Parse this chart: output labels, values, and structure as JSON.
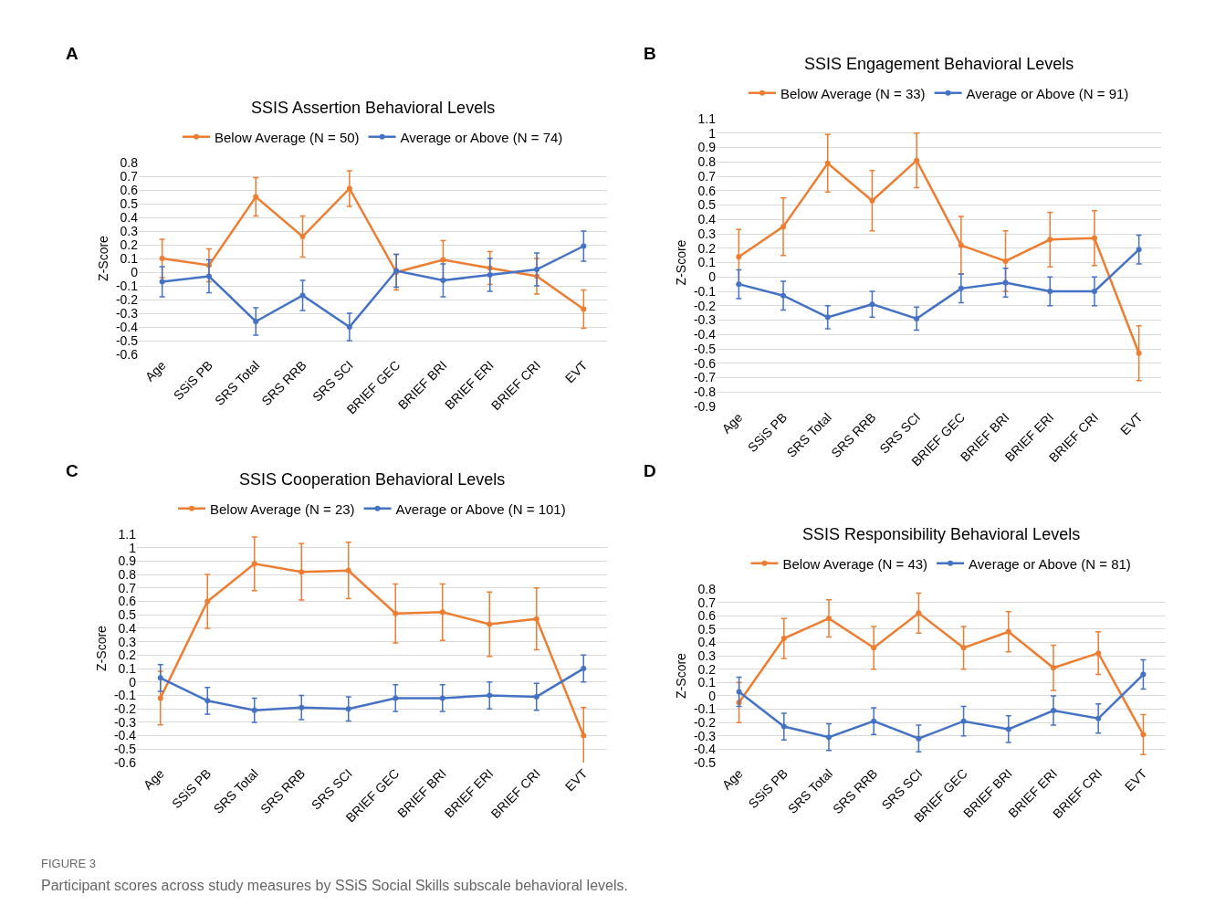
{
  "chart_data": [
    {
      "type": "line",
      "title": "SSIS Assertion Behavioral Levels",
      "ylabel": "Z-Score",
      "annotations": [
        "A"
      ],
      "categories": [
        "Age",
        "SSiS PB",
        "SRS Total",
        "SRS RRB",
        "SRS SCI",
        "BRIEF GEC",
        "BRIEF BRI",
        "BRIEF ERI",
        "BRIEF CRI",
        "EVT"
      ],
      "series": [
        {
          "name": "Below Average (N = 50)",
          "color": "#ed7d31",
          "values": [
            0.1,
            0.05,
            0.55,
            0.26,
            0.61,
            0.0,
            0.09,
            0.03,
            -0.03,
            -0.27
          ],
          "errors": [
            0.14,
            0.12,
            0.14,
            0.15,
            0.13,
            0.13,
            0.14,
            0.12,
            0.13,
            0.14
          ]
        },
        {
          "name": "Average or Above (N = 74)",
          "color": "#4472c4",
          "values": [
            -0.07,
            -0.03,
            -0.36,
            -0.17,
            -0.4,
            0.01,
            -0.06,
            -0.02,
            0.02,
            0.19
          ],
          "errors": [
            0.11,
            0.12,
            0.1,
            0.11,
            0.1,
            0.12,
            0.12,
            0.12,
            0.12,
            0.11
          ]
        }
      ],
      "ylim": [
        -0.6,
        0.8
      ],
      "yticks": [
        -0.6,
        -0.5,
        -0.4,
        -0.3,
        -0.2,
        -0.1,
        0,
        0.1,
        0.2,
        0.3,
        0.4,
        0.5,
        0.6,
        0.7,
        0.8
      ],
      "grid": "y",
      "legend": "top",
      "marker": "circle",
      "line_style": "solid"
    },
    {
      "type": "line",
      "title": "SSIS Engagement Behavioral Levels",
      "ylabel": "Z-Score",
      "annotations": [
        "B"
      ],
      "categories": [
        "Age",
        "SSiS PB",
        "SRS Total",
        "SRS RRB",
        "SRS SCI",
        "BRIEF GEC",
        "BRIEF BRI",
        "BRIEF ERI",
        "BRIEF CRI",
        "EVT"
      ],
      "series": [
        {
          "name": "Below Average (N = 33)",
          "color": "#ed7d31",
          "values": [
            0.14,
            0.35,
            0.79,
            0.53,
            0.81,
            0.22,
            0.11,
            0.26,
            0.27,
            -0.53
          ],
          "errors": [
            0.19,
            0.2,
            0.2,
            0.21,
            0.19,
            0.2,
            0.21,
            0.19,
            0.19,
            0.19
          ]
        },
        {
          "name": "Average or Above (N = 91)",
          "color": "#4472c4",
          "values": [
            -0.05,
            -0.13,
            -0.28,
            -0.19,
            -0.29,
            -0.08,
            -0.04,
            -0.1,
            -0.1,
            0.19
          ],
          "errors": [
            0.1,
            0.1,
            0.08,
            0.09,
            0.08,
            0.1,
            0.1,
            0.1,
            0.1,
            0.1
          ]
        }
      ],
      "ylim": [
        -0.9,
        1.1
      ],
      "yticks": [
        -0.9,
        -0.8,
        -0.7,
        -0.6,
        -0.5,
        -0.4,
        -0.3,
        -0.2,
        -0.1,
        0,
        0.1,
        0.2,
        0.3,
        0.4,
        0.5,
        0.6,
        0.7,
        0.8,
        0.9,
        1,
        1.1
      ],
      "grid": "y",
      "legend": "top",
      "marker": "circle",
      "line_style": "solid"
    },
    {
      "type": "line",
      "title": "SSIS Cooperation Behavioral Levels",
      "ylabel": "Z-Score",
      "annotations": [
        "C"
      ],
      "categories": [
        "Age",
        "SSiS PB",
        "SRS Total",
        "SRS RRB",
        "SRS SCI",
        "BRIEF GEC",
        "BRIEF BRI",
        "BRIEF ERI",
        "BRIEF CRI",
        "EVT"
      ],
      "series": [
        {
          "name": "Below Average (N = 23)",
          "color": "#ed7d31",
          "values": [
            -0.12,
            0.6,
            0.88,
            0.82,
            0.83,
            0.51,
            0.52,
            0.43,
            0.47,
            -0.4
          ],
          "errors": [
            0.2,
            0.2,
            0.2,
            0.21,
            0.21,
            0.22,
            0.21,
            0.24,
            0.23,
            0.21
          ]
        },
        {
          "name": "Average or Above (N = 101)",
          "color": "#4472c4",
          "values": [
            0.03,
            -0.14,
            -0.21,
            -0.19,
            -0.2,
            -0.12,
            -0.12,
            -0.1,
            -0.11,
            0.1
          ],
          "errors": [
            0.1,
            0.1,
            0.09,
            0.09,
            0.09,
            0.1,
            0.1,
            0.1,
            0.1,
            0.1
          ]
        }
      ],
      "ylim": [
        -0.6,
        1.1
      ],
      "yticks": [
        -0.6,
        -0.5,
        -0.4,
        -0.3,
        -0.2,
        -0.1,
        0,
        0.1,
        0.2,
        0.3,
        0.4,
        0.5,
        0.6,
        0.7,
        0.8,
        0.9,
        1,
        1.1
      ],
      "grid": "y",
      "legend": "top",
      "marker": "circle",
      "line_style": "solid"
    },
    {
      "type": "line",
      "title": "SSIS Responsibility Behavioral Levels",
      "ylabel": "Z-Score",
      "annotations": [
        "D",
        "FIGURE 3",
        "Participant scores across study measures by SSiS Social Skills subscale behavioral levels."
      ],
      "categories": [
        "Age",
        "SSiS PB",
        "SRS Total",
        "SRS RRB",
        "SRS SCI",
        "BRIEF GEC",
        "BRIEF BRI",
        "BRIEF ERI",
        "BRIEF CRI",
        "EVT"
      ],
      "series": [
        {
          "name": "Below Average (N = 43)",
          "color": "#ed7d31",
          "values": [
            -0.05,
            0.43,
            0.58,
            0.36,
            0.62,
            0.36,
            0.48,
            0.21,
            0.32,
            -0.29
          ],
          "errors": [
            0.15,
            0.15,
            0.14,
            0.16,
            0.15,
            0.16,
            0.15,
            0.17,
            0.16,
            0.15
          ]
        },
        {
          "name": "Average or Above (N = 81)",
          "color": "#4472c4",
          "values": [
            0.03,
            -0.23,
            -0.31,
            -0.19,
            -0.32,
            -0.19,
            -0.25,
            -0.11,
            -0.17,
            0.16
          ],
          "errors": [
            0.11,
            0.1,
            0.1,
            0.1,
            0.1,
            0.11,
            0.1,
            0.11,
            0.11,
            0.11
          ]
        }
      ],
      "ylim": [
        -0.5,
        0.8
      ],
      "yticks": [
        -0.5,
        -0.4,
        -0.3,
        -0.2,
        -0.1,
        0,
        0.1,
        0.2,
        0.3,
        0.4,
        0.5,
        0.6,
        0.7,
        0.8
      ],
      "grid": "y",
      "legend": "top",
      "marker": "circle",
      "line_style": "solid"
    }
  ]
}
